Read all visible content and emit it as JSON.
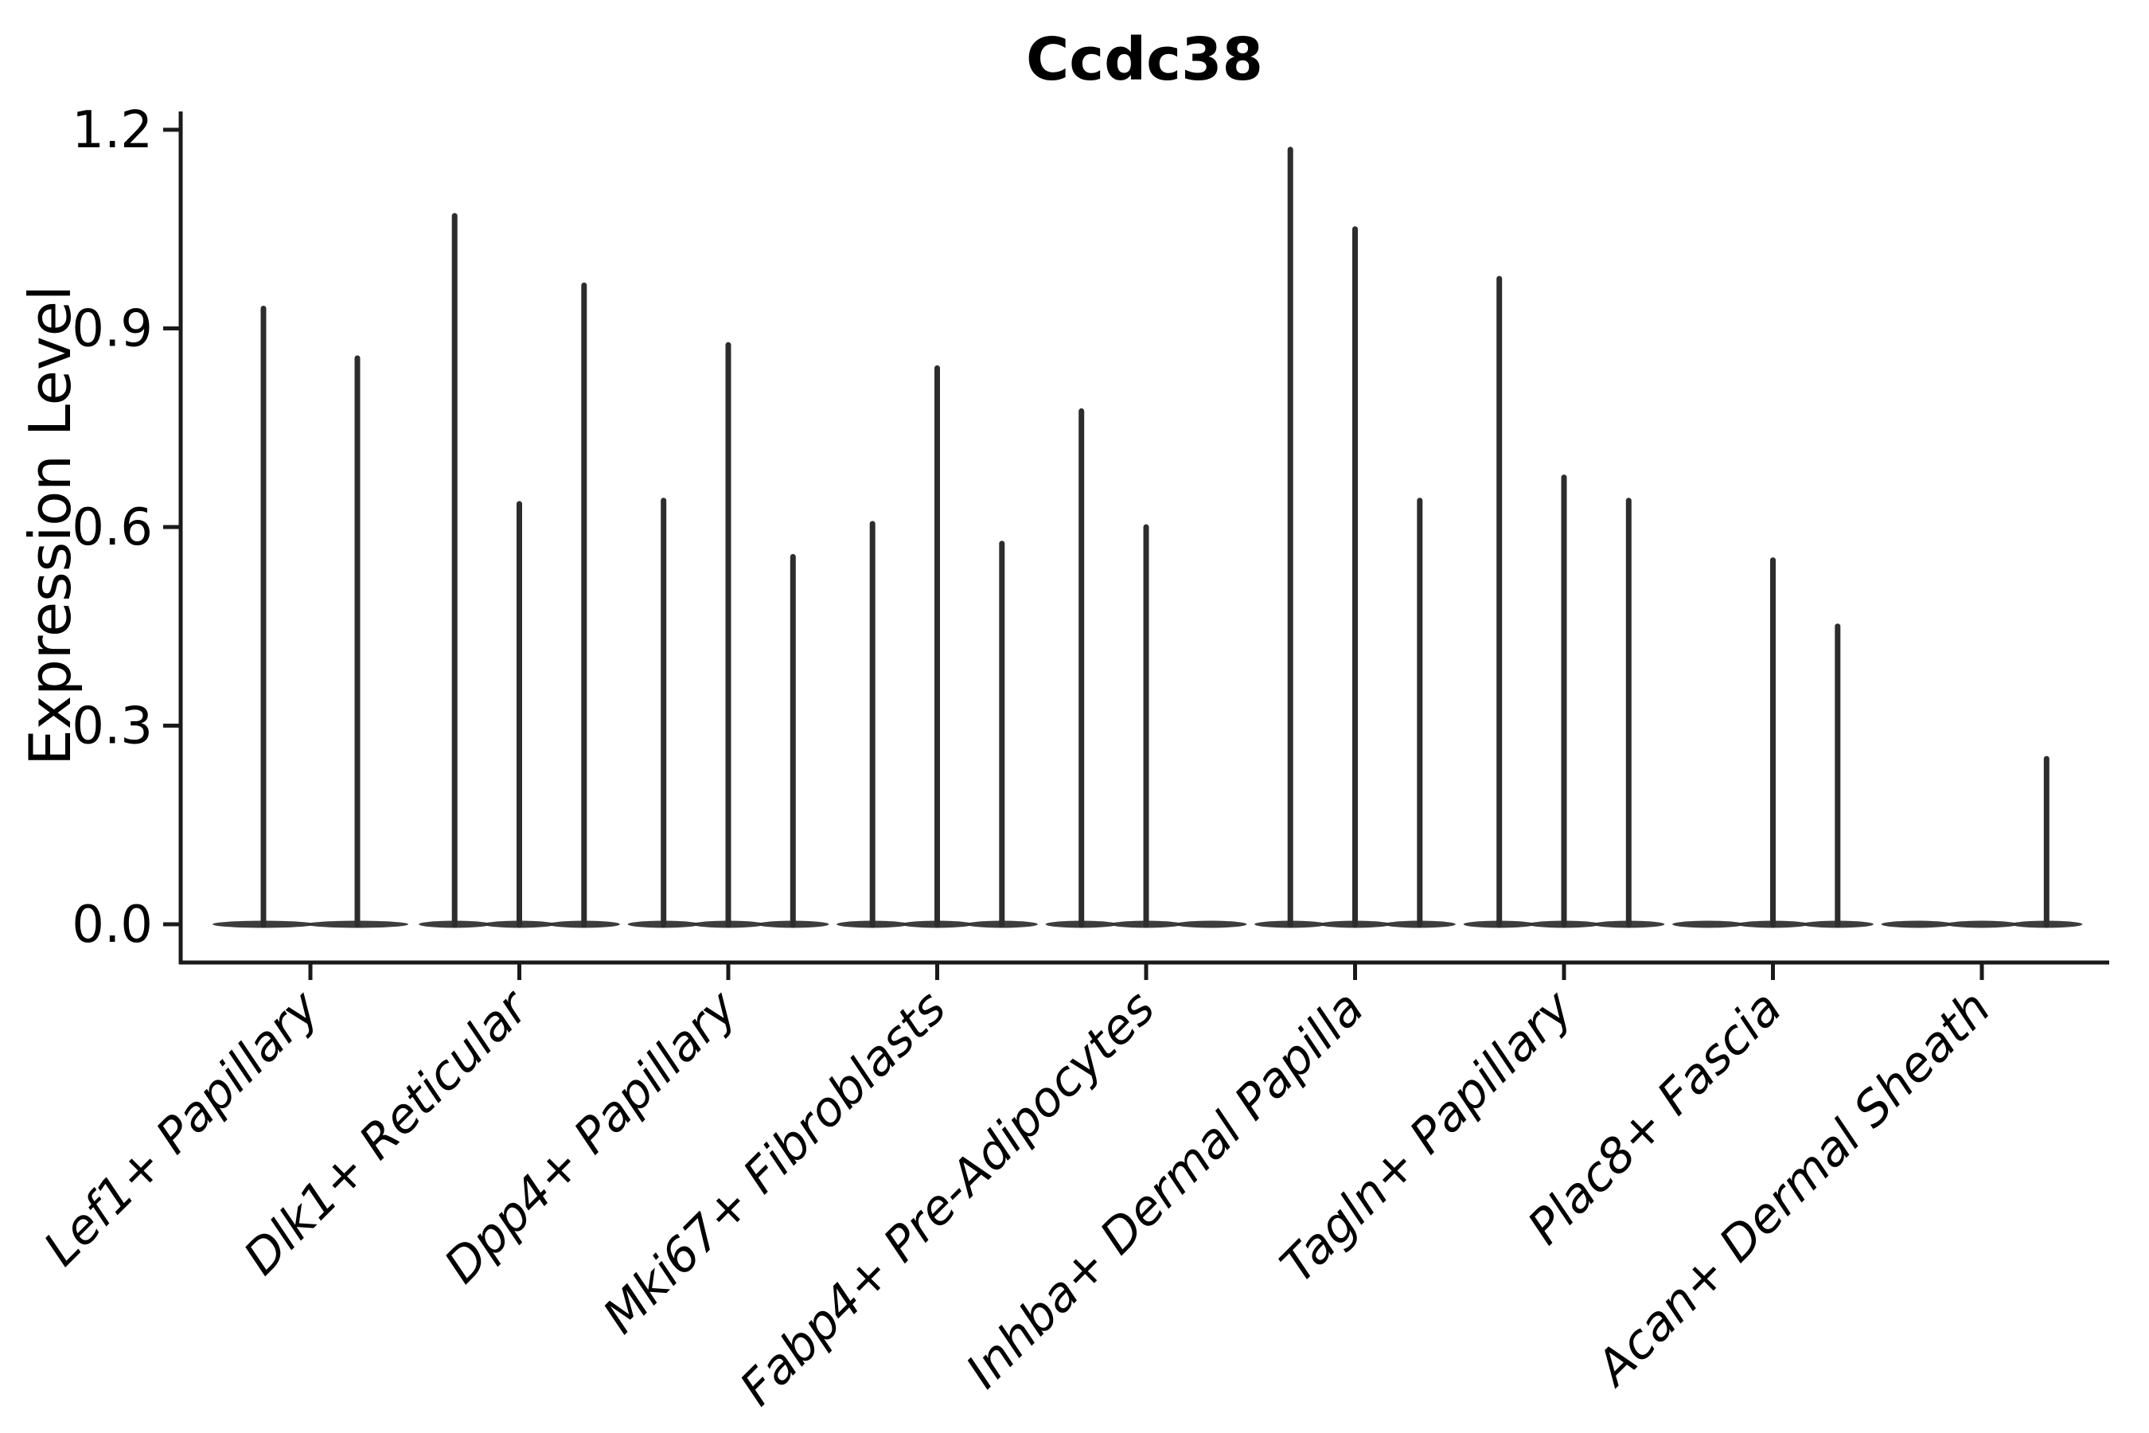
{
  "figure": {
    "title": "Ccdc38",
    "ylabel": "Expression Level"
  },
  "chart_data": {
    "type": "violin",
    "title": "Ccdc38",
    "xlabel": "",
    "ylabel": "Expression Level",
    "ylim": [
      -0.06,
      1.23
    ],
    "yticks": [
      0.0,
      0.3,
      0.6,
      0.9,
      1.2
    ],
    "ytick_labels": [
      "0.0",
      "0.3",
      "0.6",
      "0.9",
      "1.2"
    ],
    "grid": false,
    "legend": "none",
    "style_note": "violins are collapsed onto the baseline (flat bodies at 0) with thin vertical spikes reaching each violin's maximum expression value",
    "groups": [
      {
        "label": "Lef1+ Papillary",
        "violin_max": [
          0.93,
          0.855
        ]
      },
      {
        "label": "Dlk1+ Reticular",
        "violin_max": [
          1.07,
          0.635,
          0.965
        ]
      },
      {
        "label": "Dpp4+ Papillary",
        "violin_max": [
          0.64,
          0.875,
          0.555
        ]
      },
      {
        "label": "Mki67+ Fibroblasts",
        "violin_max": [
          0.605,
          0.84,
          0.575
        ]
      },
      {
        "label": "Fabp4+ Pre-Adipocytes",
        "violin_max": [
          0.775,
          0.6,
          0
        ]
      },
      {
        "label": "Inhba+ Dermal Papilla",
        "violin_max": [
          1.17,
          1.05,
          0.64
        ]
      },
      {
        "label": "Tagln+ Papillary",
        "violin_max": [
          0.975,
          0.675,
          0.64
        ]
      },
      {
        "label": "Plac8+ Fascia",
        "violin_max": [
          0,
          0.55,
          0.45
        ]
      },
      {
        "label": "Acan+ Dermal Sheath",
        "violin_max": [
          0,
          0,
          0.25
        ]
      }
    ]
  },
  "colors": {
    "background": "#ffffff",
    "ink": "#000000",
    "spine": "#1a1a1a",
    "violin": "#2d2d2d",
    "violin_body": "#333333"
  }
}
